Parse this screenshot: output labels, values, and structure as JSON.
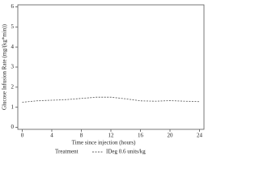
{
  "chart_data": {
    "type": "line",
    "x_label": "Time since injection (hours)",
    "y_label": "Glucose Infusion Rate (mg/(kg*min))",
    "legend_title": "Treatment",
    "x": [
      0,
      2,
      4,
      6,
      8,
      10,
      12,
      14,
      16,
      18,
      20,
      22,
      24
    ],
    "series": [
      {
        "name": "IDeg 0.6 units/kg",
        "color": "#666666",
        "values": [
          1.25,
          1.32,
          1.35,
          1.38,
          1.44,
          1.5,
          1.5,
          1.42,
          1.32,
          1.3,
          1.33,
          1.3,
          1.28
        ]
      }
    ],
    "xlim": [
      -0.6,
      24.6
    ],
    "xticks": [
      0,
      4,
      8,
      12,
      16,
      20,
      24
    ],
    "ylim": [
      -0.1,
      6.1
    ],
    "yticks": [
      0,
      1,
      2,
      3,
      4,
      5,
      6
    ],
    "line_style": "dashed",
    "legend_position": "bottom"
  }
}
